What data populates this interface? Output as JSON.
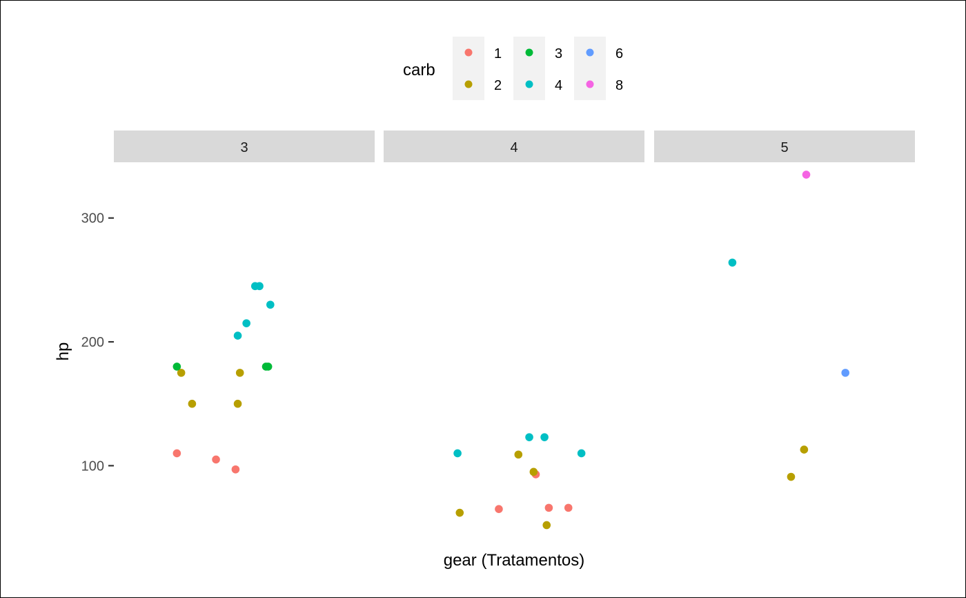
{
  "chart_data": {
    "type": "scatter",
    "xlabel": "gear (Tratamentos)",
    "ylabel": "hp",
    "facet_labels": [
      "3",
      "4",
      "5"
    ],
    "yticks": [
      100,
      200,
      300
    ],
    "y_tick_labels": [
      "100",
      "200",
      "300"
    ],
    "ylim": [
      40,
      345
    ],
    "x_jitter_range": [
      -0.4,
      0.4
    ],
    "grid": false,
    "legend": {
      "title": "carb",
      "position": "top",
      "entries": [
        {
          "label": "1",
          "color": "#F8766D"
        },
        {
          "label": "2",
          "color": "#B79F00"
        },
        {
          "label": "3",
          "color": "#00BA38"
        },
        {
          "label": "4",
          "color": "#00BFC4"
        },
        {
          "label": "6",
          "color": "#619CFF"
        },
        {
          "label": "8",
          "color": "#F564E3"
        }
      ]
    },
    "points": [
      {
        "facet": "3",
        "x": -0.31,
        "hp": 110,
        "carb": "1"
      },
      {
        "facet": "3",
        "x": -0.13,
        "hp": 105,
        "carb": "1"
      },
      {
        "facet": "3",
        "x": -0.04,
        "hp": 97,
        "carb": "1"
      },
      {
        "facet": "3",
        "x": -0.29,
        "hp": 175,
        "carb": "2"
      },
      {
        "facet": "3",
        "x": -0.24,
        "hp": 150,
        "carb": "2"
      },
      {
        "facet": "3",
        "x": -0.03,
        "hp": 150,
        "carb": "2"
      },
      {
        "facet": "3",
        "x": -0.02,
        "hp": 175,
        "carb": "2"
      },
      {
        "facet": "3",
        "x": -0.31,
        "hp": 180,
        "carb": "3"
      },
      {
        "facet": "3",
        "x": 0.1,
        "hp": 180,
        "carb": "3"
      },
      {
        "facet": "3",
        "x": 0.11,
        "hp": 180,
        "carb": "3"
      },
      {
        "facet": "3",
        "x": -0.03,
        "hp": 205,
        "carb": "4"
      },
      {
        "facet": "3",
        "x": 0.01,
        "hp": 215,
        "carb": "4"
      },
      {
        "facet": "3",
        "x": 0.05,
        "hp": 245,
        "carb": "4"
      },
      {
        "facet": "3",
        "x": 0.07,
        "hp": 245,
        "carb": "4"
      },
      {
        "facet": "3",
        "x": 0.12,
        "hp": 230,
        "carb": "4"
      },
      {
        "facet": "4",
        "x": -0.07,
        "hp": 65,
        "carb": "1"
      },
      {
        "facet": "4",
        "x": 0.1,
        "hp": 93,
        "carb": "1"
      },
      {
        "facet": "4",
        "x": 0.16,
        "hp": 66,
        "carb": "1"
      },
      {
        "facet": "4",
        "x": 0.25,
        "hp": 66,
        "carb": "1"
      },
      {
        "facet": "4",
        "x": -0.25,
        "hp": 62,
        "carb": "2"
      },
      {
        "facet": "4",
        "x": 0.02,
        "hp": 109,
        "carb": "2"
      },
      {
        "facet": "4",
        "x": 0.09,
        "hp": 95,
        "carb": "2"
      },
      {
        "facet": "4",
        "x": 0.15,
        "hp": 52,
        "carb": "2"
      },
      {
        "facet": "4",
        "x": -0.26,
        "hp": 110,
        "carb": "4"
      },
      {
        "facet": "4",
        "x": 0.07,
        "hp": 123,
        "carb": "4"
      },
      {
        "facet": "4",
        "x": 0.14,
        "hp": 123,
        "carb": "4"
      },
      {
        "facet": "4",
        "x": 0.31,
        "hp": 110,
        "carb": "4"
      },
      {
        "facet": "5",
        "x": 0.03,
        "hp": 91,
        "carb": "2"
      },
      {
        "facet": "5",
        "x": 0.09,
        "hp": 113,
        "carb": "2"
      },
      {
        "facet": "5",
        "x": -0.24,
        "hp": 264,
        "carb": "4"
      },
      {
        "facet": "5",
        "x": 0.28,
        "hp": 175,
        "carb": "6"
      },
      {
        "facet": "5",
        "x": 0.1,
        "hp": 335,
        "carb": "8"
      }
    ]
  }
}
